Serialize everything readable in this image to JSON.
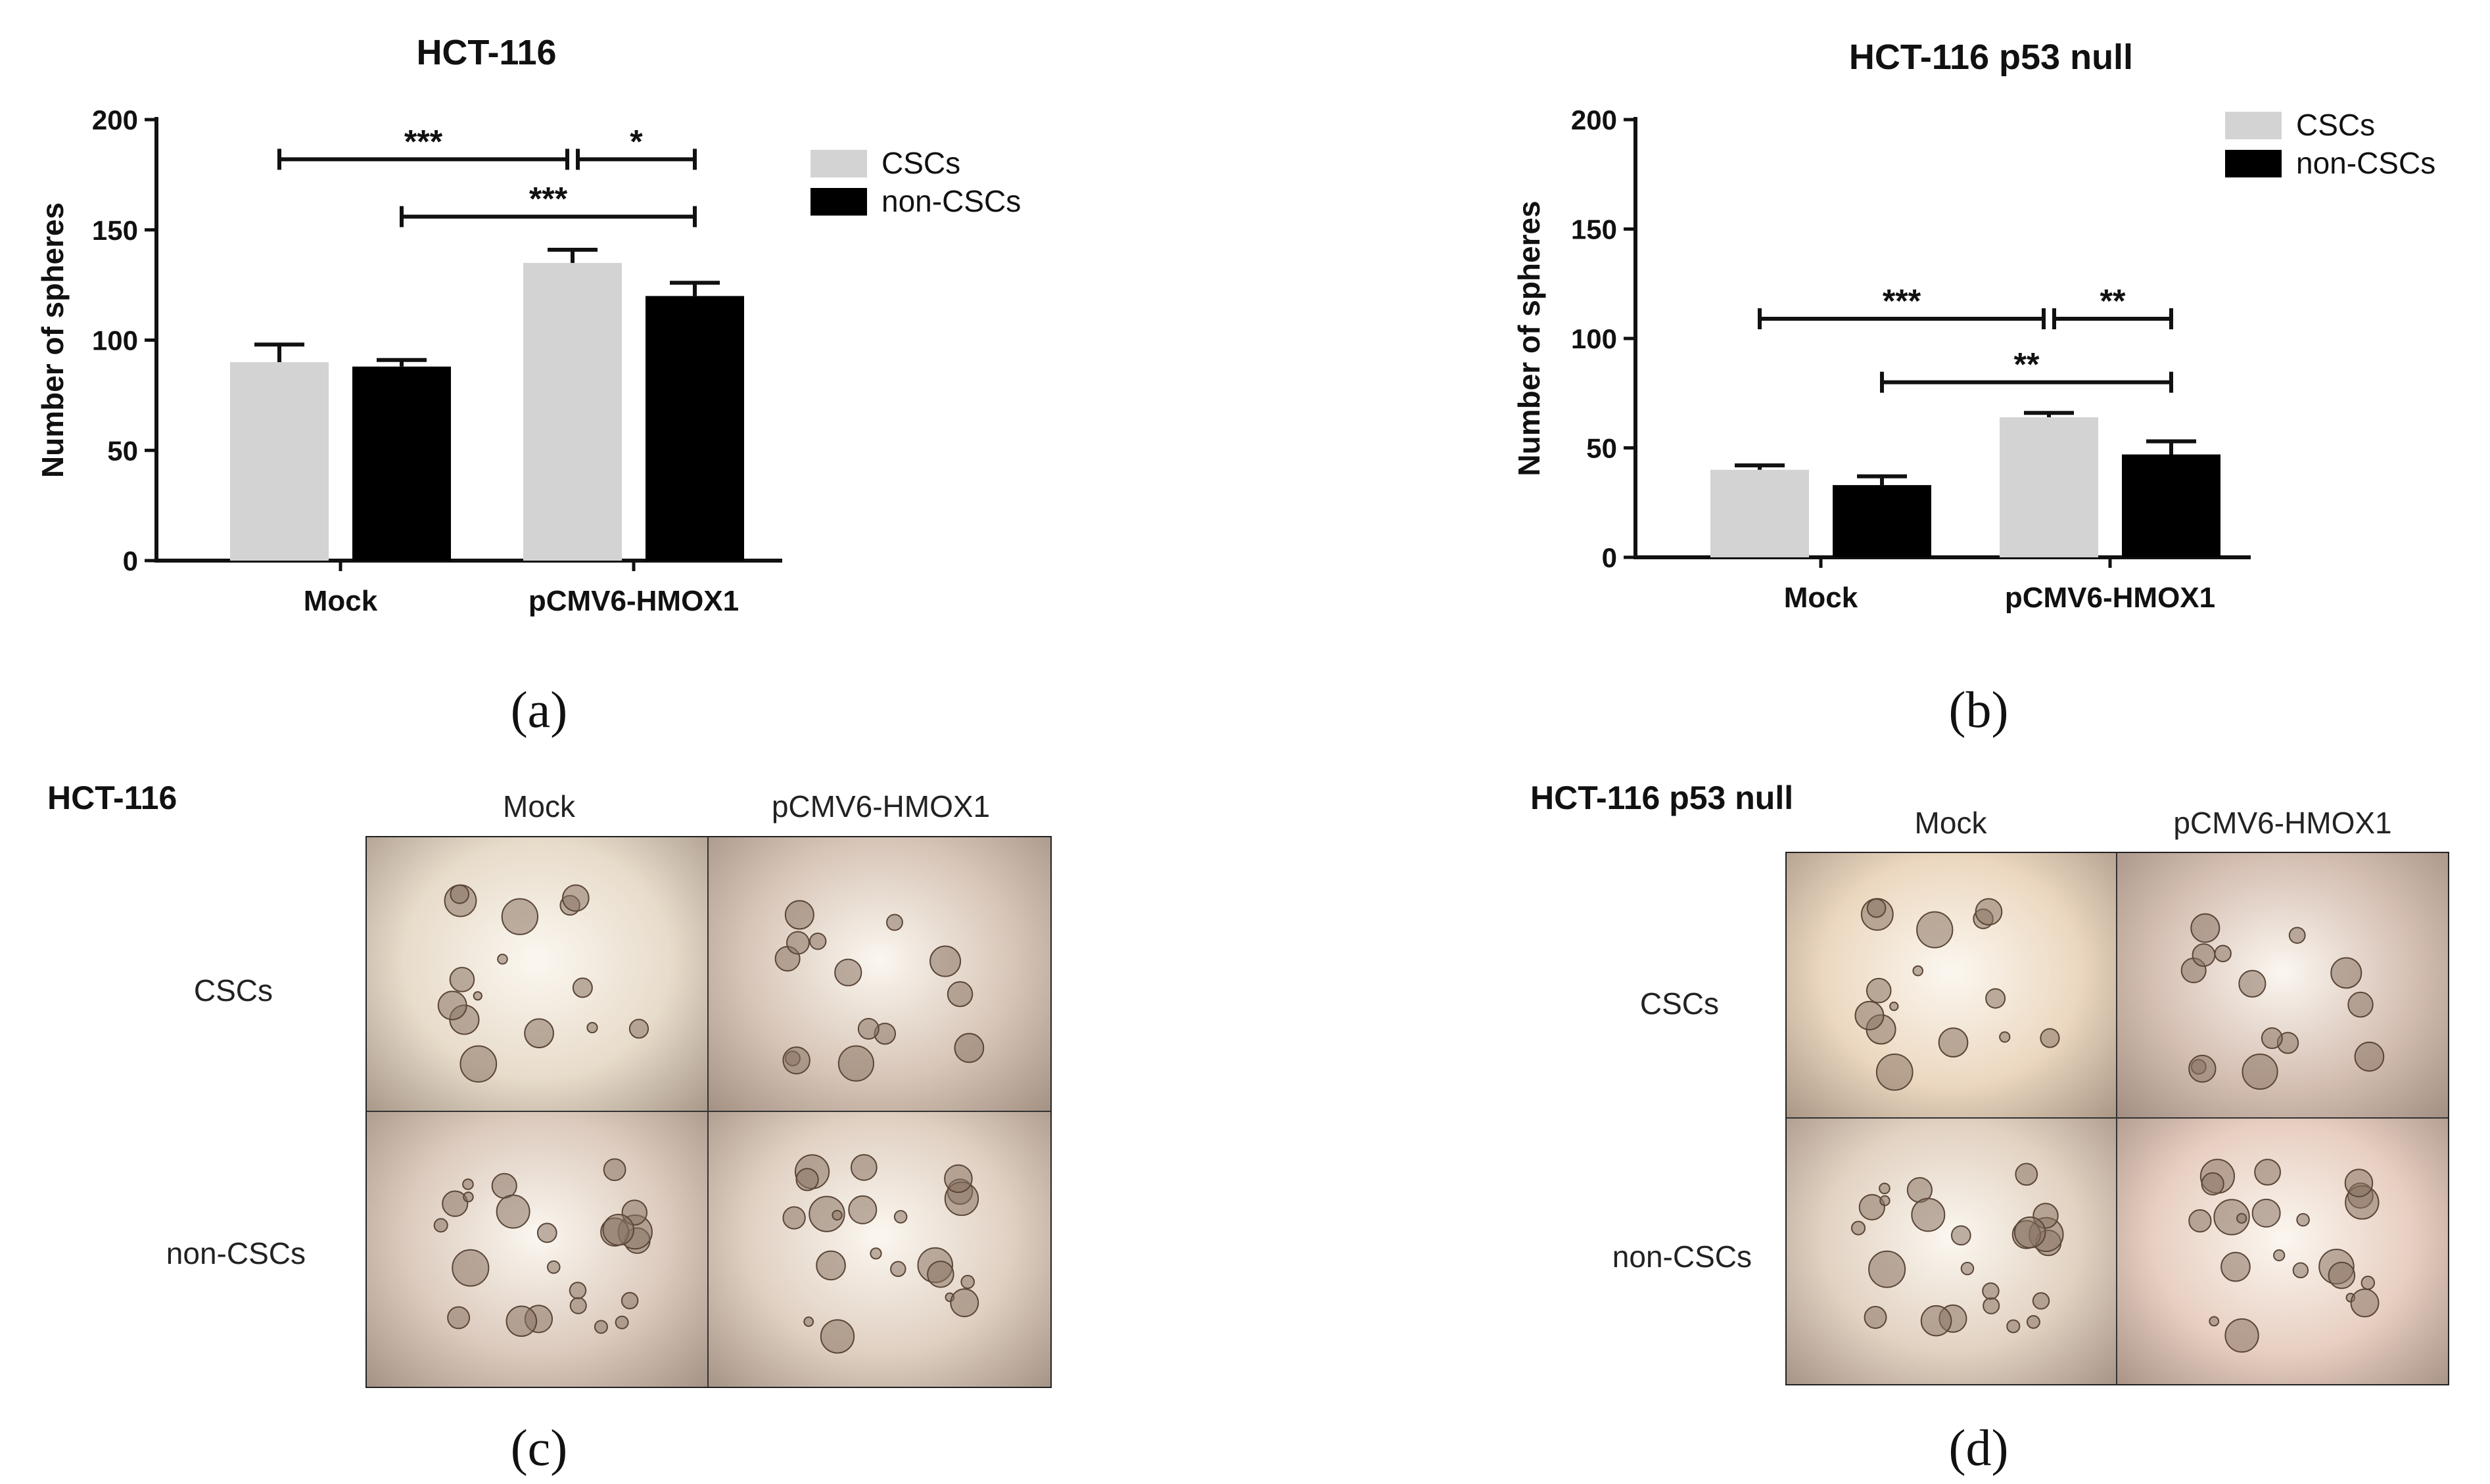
{
  "chart_data": [
    {
      "type": "bar",
      "panel": "a",
      "title": "HCT-116",
      "xlabel": "",
      "ylabel": "Number of spheres",
      "ylim": [
        0,
        200
      ],
      "yticks": [
        "0",
        "50",
        "100",
        "150",
        "200"
      ],
      "categories": [
        "Mock",
        "pCMV6-HMOX1"
      ],
      "series": [
        {
          "name": "CSCs",
          "color": "#d3d3d3",
          "values": [
            90,
            135
          ],
          "errors": [
            8,
            6
          ]
        },
        {
          "name": "non-CSCs",
          "color": "#000000",
          "values": [
            88,
            120
          ],
          "errors": [
            3,
            6
          ]
        }
      ],
      "legend": "top-right",
      "annotations": [
        {
          "text": "***",
          "from": "Mock CSCs",
          "to": "pCMV6-HMOX1 CSCs",
          "level": 182
        },
        {
          "text": "*",
          "from": "pCMV6-HMOX1 CSCs",
          "to": "pCMV6-HMOX1 non-CSCs",
          "level": 182
        },
        {
          "text": "***",
          "from": "Mock non-CSCs",
          "to": "pCMV6-HMOX1 non-CSCs",
          "level": 156
        }
      ],
      "caption": "(a)"
    },
    {
      "type": "bar",
      "panel": "b",
      "title": "HCT-116 p53 null",
      "xlabel": "",
      "ylabel": "Number of spheres",
      "ylim": [
        0,
        200
      ],
      "yticks": [
        "0",
        "50",
        "100",
        "150",
        "200"
      ],
      "categories": [
        "Mock",
        "pCMV6-HMOX1"
      ],
      "series": [
        {
          "name": "CSCs",
          "color": "#d3d3d3",
          "values": [
            40,
            64
          ],
          "errors": [
            2,
            2
          ]
        },
        {
          "name": "non-CSCs",
          "color": "#000000",
          "values": [
            33,
            47
          ],
          "errors": [
            4,
            6
          ]
        }
      ],
      "legend": "top-right",
      "annotations": [
        {
          "text": "***",
          "from": "Mock CSCs",
          "to": "pCMV6-HMOX1 CSCs",
          "level": 109
        },
        {
          "text": "**",
          "from": "pCMV6-HMOX1 CSCs",
          "to": "pCMV6-HMOX1 non-CSCs",
          "level": 109
        },
        {
          "text": "**",
          "from": "Mock non-CSCs",
          "to": "pCMV6-HMOX1 non-CSCs",
          "level": 80
        }
      ],
      "caption": "(b)"
    }
  ],
  "micrographs": [
    {
      "panel": "c",
      "title": "HCT-116",
      "columns": [
        "Mock",
        "pCMV6-HMOX1"
      ],
      "rows": [
        "CSCs",
        "non-CSCs"
      ],
      "caption": "(c)",
      "tints": [
        [
          "#e8dccb",
          "#d8c6b8"
        ],
        [
          "#dccabd",
          "#e0d0c2"
        ]
      ]
    },
    {
      "panel": "d",
      "title": "HCT-116 p53 null",
      "columns": [
        "Mock",
        "pCMV6-HMOX1"
      ],
      "rows": [
        "CSCs",
        "non-CSCs"
      ],
      "caption": "(d)",
      "tints": [
        [
          "#ecd8c0",
          "#d6c0b4"
        ],
        [
          "#e2d2c2",
          "#e8cfc2"
        ]
      ]
    }
  ]
}
